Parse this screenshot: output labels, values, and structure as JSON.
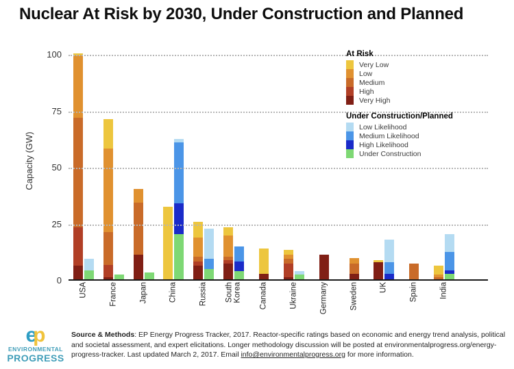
{
  "title": "Nuclear At Risk by 2030, Under Construction and Planned",
  "chart_data": {
    "type": "bar",
    "stacked": true,
    "unit": "GW",
    "title": "Nuclear At Risk by 2030, Under Construction and Planned",
    "ylabel": "Capacity (GW)",
    "ylim": [
      0,
      100
    ],
    "yticks": [
      0,
      25,
      50,
      75,
      100
    ],
    "grid": "horizontal-dotted",
    "legend_position": "top-right",
    "groups": {
      "at_risk": {
        "label": "At Risk",
        "stack_order": [
          "Very High",
          "High",
          "Medium",
          "Low",
          "Very Low"
        ],
        "legend_order": [
          "Very Low",
          "Low",
          "Medium",
          "High",
          "Very High"
        ],
        "colors": {
          "Very Low": "#edc63e",
          "Low": "#e09130",
          "Medium": "#c96b29",
          "High": "#b13f26",
          "Very High": "#801f15"
        }
      },
      "planned": {
        "label": "Under Construction/Planned",
        "stack_order": [
          "Under Construction",
          "High Likelihood",
          "Medium Likelihood",
          "Low Likelihood"
        ],
        "legend_order": [
          "Low Likelihood",
          "Medium Likelihood",
          "High Likelihood",
          "Under Construction"
        ],
        "colors": {
          "Low Likelihood": "#b4dbf2",
          "Medium Likelihood": "#4b95e7",
          "High Likelihood": "#1a2bc9",
          "Under Construction": "#7ed874"
        }
      }
    },
    "countries": [
      {
        "name": "USA",
        "at_risk": {
          "Very High": 6,
          "High": 17,
          "Medium": 48.5,
          "Low": 27.5,
          "Very Low": 1
        },
        "planned": {
          "Under Construction": 4,
          "Low Likelihood": 5
        }
      },
      {
        "name": "France",
        "at_risk": {
          "Very High": 1,
          "High": 5.5,
          "Medium": 14.5,
          "Low": 37,
          "Very Low": 13
        },
        "planned": {
          "Under Construction": 2
        }
      },
      {
        "name": "Japan",
        "at_risk": {
          "Very High": 11,
          "Medium": 23,
          "Low": 6
        },
        "planned": {
          "Under Construction": 3
        }
      },
      {
        "name": "China",
        "at_risk": {
          "Very Low": 32
        },
        "planned": {
          "Under Construction": 20,
          "High Likelihood": 13.5,
          "Medium Likelihood": 27,
          "Low Likelihood": 1.5
        }
      },
      {
        "name": "Russia",
        "at_risk": {
          "Very High": 6,
          "High": 2,
          "Medium": 2,
          "Low": 8.5,
          "Very Low": 7
        },
        "planned": {
          "Under Construction": 4.5,
          "Medium Likelihood": 4.5,
          "Low Likelihood": 13.5
        }
      },
      {
        "name": "South\nKorea",
        "at_risk": {
          "Very High": 7,
          "High": 1.5,
          "Medium": 1.5,
          "Low": 9.5,
          "Very Low": 3.5
        },
        "planned": {
          "Under Construction": 3.5,
          "High Likelihood": 4.5,
          "Medium Likelihood": 6.5
        }
      },
      {
        "name": "Canada",
        "at_risk": {
          "Very High": 2.5,
          "Very Low": 11
        },
        "planned": {}
      },
      {
        "name": "Ukraine",
        "at_risk": {
          "Very High": 1,
          "High": 6,
          "Medium": 2,
          "Low": 2,
          "Very Low": 2
        },
        "planned": {
          "Under Construction": 2,
          "Low Likelihood": 1.5
        }
      },
      {
        "name": "Germany",
        "at_risk": {
          "Very High": 11
        },
        "planned": {}
      },
      {
        "name": "Sweden",
        "at_risk": {
          "Very High": 2.5,
          "Medium": 4.5,
          "Low": 2.5
        },
        "planned": {}
      },
      {
        "name": "UK",
        "at_risk": {
          "Very High": 7.5,
          "Very Low": 1
        },
        "planned": {
          "High Likelihood": 2.5,
          "Medium Likelihood": 5,
          "Low Likelihood": 10
        }
      },
      {
        "name": "Spain",
        "at_risk": {
          "Medium": 7
        },
        "planned": {}
      },
      {
        "name": "India",
        "at_risk": {
          "Medium": 1,
          "Low": 1,
          "Very Low": 4
        },
        "planned": {
          "Under Construction": 2.5,
          "High Likelihood": 1.5,
          "Medium Likelihood": 8,
          "Low Likelihood": 8
        }
      }
    ]
  },
  "footer": {
    "bold": "Source & Methods",
    "line1_rest": ": EP Energy Progress Tracker, 2017. Reactor-specific ratings based on economic and energy trend analysis, political",
    "line2": "and societal assessment, and expert elicitations. Longer methodology discussion will be posted at environmentalprogress.org/energy-",
    "line3_before": "progress-tracker. Last updated March 2, 2017. Email ",
    "line3_link": "info@environmentalprogress.org",
    "line3_after": " for more information."
  },
  "logo": {
    "mark_e": "e",
    "mark_p": "p",
    "line1": "ENVIRONMENTAL",
    "line2": "PROGRESS"
  }
}
